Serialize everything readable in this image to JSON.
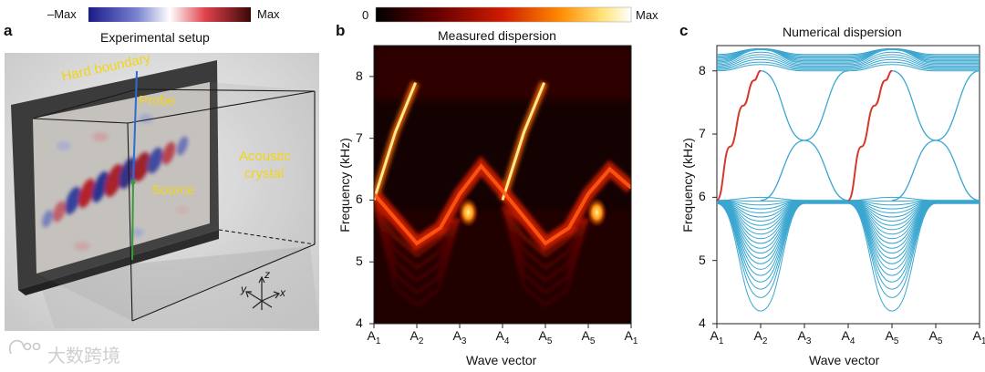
{
  "panels": {
    "a": {
      "letter": "a",
      "title": "Experimental setup",
      "colorbar": {
        "min_label": "–Max",
        "max_label": "Max",
        "colors": [
          "#1a1a8a",
          "#ffffff",
          "#c0151a",
          "#3a0808"
        ]
      },
      "annotations": {
        "hard_boundary": "Hard boundary",
        "probe": "Probe",
        "source": "Source",
        "crystal_line1": "Acoustic",
        "crystal_line2": "crystal"
      },
      "axes_glyph": {
        "z": "z",
        "y": "y",
        "x": "x"
      }
    },
    "b": {
      "letter": "b",
      "title": "Measured dispersion",
      "colorbar": {
        "min_label": "0",
        "max_label": "Max"
      },
      "ylabel": "Frequency (kHz)",
      "xlabel": "Wave vector",
      "yticks": [
        "8",
        "7",
        "6",
        "5",
        "4"
      ],
      "xticks": [
        {
          "base": "A",
          "sub": "1"
        },
        {
          "base": "A",
          "sub": "2"
        },
        {
          "base": "A",
          "sub": "3"
        },
        {
          "base": "A",
          "sub": "4"
        },
        {
          "base": "A",
          "sub": "5"
        },
        {
          "base": "A",
          "sub": "5"
        },
        {
          "base": "A",
          "sub": "1"
        }
      ]
    },
    "c": {
      "letter": "c",
      "title": "Numerical dispersion",
      "ylabel": "Frequency (kHz)",
      "xlabel": "Wave vector",
      "yticks": [
        "8",
        "7",
        "6",
        "5",
        "4"
      ],
      "xticks": [
        {
          "base": "A",
          "sub": "1"
        },
        {
          "base": "A",
          "sub": "2"
        },
        {
          "base": "A",
          "sub": "3"
        },
        {
          "base": "A",
          "sub": "4"
        },
        {
          "base": "A",
          "sub": "5"
        },
        {
          "base": "A",
          "sub": "5"
        },
        {
          "base": "A",
          "sub": "1"
        }
      ]
    }
  },
  "chart_data": [
    {
      "type": "heatmap",
      "title": "Measured dispersion",
      "xlabel": "Wave vector",
      "ylabel": "Frequency (kHz)",
      "ylim": [
        4,
        8.5
      ],
      "x_categories": [
        "A1",
        "A2",
        "A3",
        "A4",
        "A5",
        "A5",
        "A1"
      ],
      "colorscale": [
        "#000000",
        "#6a0000",
        "#d01c00",
        "#ff8a00",
        "#ffe070",
        "#ffffff"
      ],
      "features": [
        {
          "name": "edge-mode-bright",
          "points": [
            [
              0.0,
              6.0
            ],
            [
              0.5,
              7.1
            ],
            [
              0.97,
              7.9
            ]
          ]
        },
        {
          "name": "edge-mode-bright-2",
          "points": [
            [
              3.0,
              6.0
            ],
            [
              3.5,
              7.1
            ],
            [
              3.97,
              7.9
            ]
          ]
        },
        {
          "name": "upper-band-edge",
          "points": [
            [
              0.0,
              6.1
            ],
            [
              1.0,
              5.3
            ],
            [
              1.55,
              5.55
            ],
            [
              2.0,
              6.1
            ],
            [
              2.5,
              6.55
            ],
            [
              3.0,
              6.15
            ],
            [
              4.0,
              5.3
            ],
            [
              4.55,
              5.55
            ],
            [
              5.0,
              6.1
            ],
            [
              5.5,
              6.5
            ],
            [
              6.0,
              6.2
            ]
          ]
        },
        {
          "name": "bright-spots",
          "points": [
            [
              2.2,
              5.8
            ],
            [
              5.2,
              5.8
            ]
          ]
        }
      ]
    },
    {
      "type": "line",
      "title": "Numerical dispersion",
      "xlabel": "Wave vector",
      "ylabel": "Frequency (kHz)",
      "ylim": [
        4,
        8.4
      ],
      "x_categories": [
        "A1",
        "A2",
        "A3",
        "A4",
        "A5",
        "A5",
        "A1"
      ],
      "series": [
        {
          "name": "edge-state-1",
          "color": "#d43a2a",
          "x": [
            0.0,
            0.3,
            0.6,
            0.85,
            1.0
          ],
          "y": [
            5.95,
            6.8,
            7.45,
            7.85,
            8.0
          ]
        },
        {
          "name": "edge-state-2",
          "color": "#d43a2a",
          "x": [
            3.0,
            3.3,
            3.6,
            3.85,
            4.0
          ],
          "y": [
            5.95,
            6.8,
            7.45,
            7.85,
            8.0
          ]
        },
        {
          "name": "crossing-upper-1",
          "color": "#3aa6d0",
          "x": [
            1.0,
            2.0,
            3.0
          ],
          "y": [
            8.0,
            6.9,
            5.95
          ]
        },
        {
          "name": "crossing-upper-2",
          "color": "#3aa6d0",
          "x": [
            1.0,
            2.0,
            3.0
          ],
          "y": [
            5.95,
            6.9,
            8.0
          ]
        },
        {
          "name": "crossing-upper-3",
          "color": "#3aa6d0",
          "x": [
            4.0,
            5.0,
            6.0
          ],
          "y": [
            8.0,
            6.9,
            5.95
          ]
        },
        {
          "name": "crossing-upper-4",
          "color": "#3aa6d0",
          "x": [
            4.0,
            5.0,
            6.0
          ],
          "y": [
            5.95,
            6.9,
            8.0
          ]
        },
        {
          "name": "bulk-band-min",
          "color": "#3aa6d0",
          "x": [
            0.0,
            1.0,
            2.0,
            3.0,
            4.0,
            5.0,
            6.0
          ],
          "y": [
            5.9,
            4.2,
            5.9,
            5.9,
            4.2,
            5.9,
            5.9
          ]
        },
        {
          "name": "bulk-band-max",
          "color": "#3aa6d0",
          "x": [
            0.0,
            1.0,
            2.0,
            3.0,
            4.0,
            5.0,
            6.0
          ],
          "y": [
            5.95,
            6.0,
            5.95,
            5.95,
            6.0,
            5.95,
            5.95
          ]
        },
        {
          "name": "upper-band-min",
          "color": "#3aa6d0",
          "x": [
            0.0,
            1.0,
            2.0,
            3.0,
            4.0,
            5.0,
            6.0
          ],
          "y": [
            8.0,
            8.1,
            8.0,
            8.0,
            8.1,
            8.0,
            8.0
          ]
        }
      ]
    }
  ],
  "watermark": {
    "text": "大数跨境"
  }
}
